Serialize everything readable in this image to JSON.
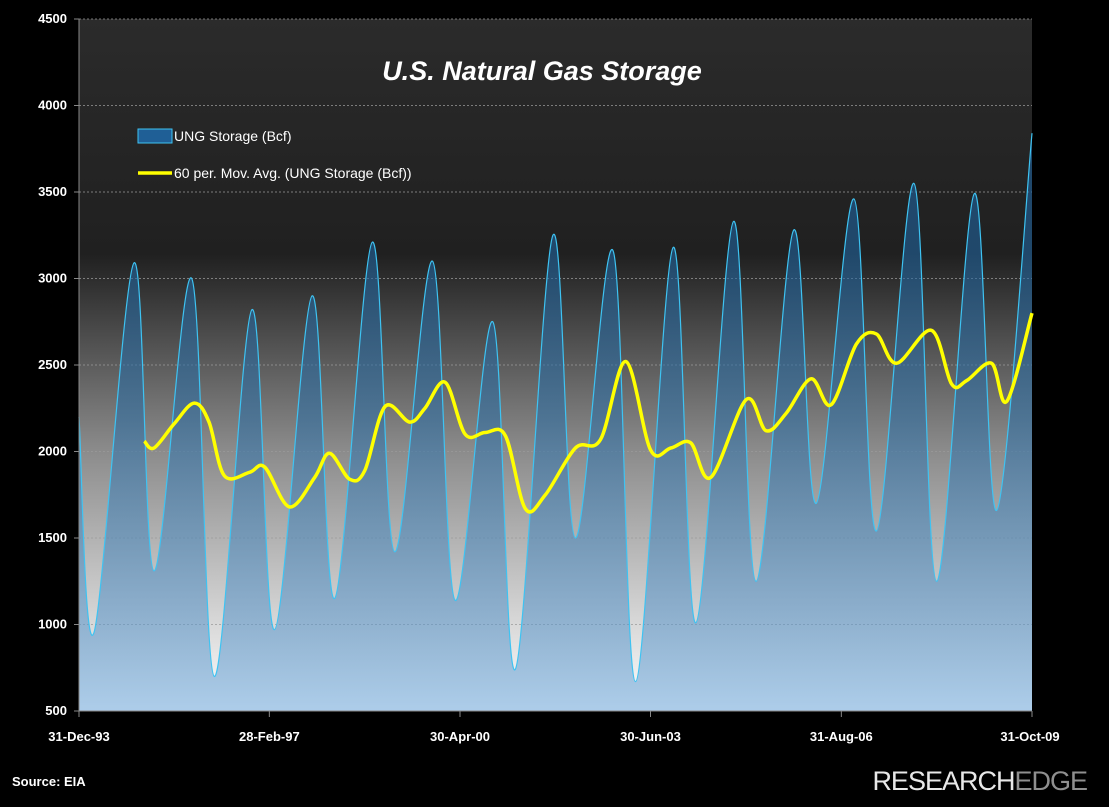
{
  "colors": {
    "background": "#000000",
    "storage_line": "#3ec3f2",
    "moving_avg": "#ffff00",
    "text": "#ffffff"
  },
  "source": "Source: EIA",
  "brand": {
    "part1": "RESEARCH",
    "part2": "EDGE"
  },
  "chart_data": {
    "type": "area",
    "title": "U.S. Natural Gas Storage",
    "xlabel": "",
    "ylabel": "",
    "ylim": [
      500,
      4500
    ],
    "yticks": [
      500,
      1000,
      1500,
      2000,
      2500,
      3000,
      3500,
      4000,
      4500
    ],
    "xlim": [
      "1993-12-31",
      "2009-10-31"
    ],
    "xticks": [
      {
        "date": "1993-12-31",
        "label": "31-Dec-93"
      },
      {
        "date": "1997-02-28",
        "label": "28-Feb-97"
      },
      {
        "date": "2000-04-30",
        "label": "30-Apr-00"
      },
      {
        "date": "2003-06-30",
        "label": "30-Jun-03"
      },
      {
        "date": "2006-08-31",
        "label": "31-Aug-06"
      },
      {
        "date": "2009-10-31",
        "label": "31-Oct-09"
      }
    ],
    "grid": "horizontal",
    "legend_position": "top-left",
    "series": [
      {
        "name": "UNG Storage (Bcf)",
        "type": "area",
        "note_points": "seasonal peaks (Nov) and troughs (Mar); date, Bcf",
        "points": [
          [
            "1993-12-31",
            2200
          ],
          [
            "1994-03-31",
            950
          ],
          [
            "1994-11-30",
            3090
          ],
          [
            "1995-03-31",
            1310
          ],
          [
            "1995-11-15",
            3000
          ],
          [
            "1996-03-31",
            700
          ],
          [
            "1996-11-15",
            2820
          ],
          [
            "1997-03-31",
            970
          ],
          [
            "1997-11-15",
            2900
          ],
          [
            "1998-03-31",
            1150
          ],
          [
            "1998-11-15",
            3210
          ],
          [
            "1999-03-31",
            1420
          ],
          [
            "1999-11-15",
            3100
          ],
          [
            "2000-03-31",
            1140
          ],
          [
            "2000-11-15",
            2750
          ],
          [
            "2001-03-31",
            740
          ],
          [
            "2001-11-15",
            3250
          ],
          [
            "2002-03-31",
            1500
          ],
          [
            "2002-11-15",
            3160
          ],
          [
            "2003-03-31",
            670
          ],
          [
            "2003-11-15",
            3180
          ],
          [
            "2004-03-31",
            1010
          ],
          [
            "2004-11-15",
            3330
          ],
          [
            "2005-03-31",
            1250
          ],
          [
            "2005-11-15",
            3280
          ],
          [
            "2006-03-31",
            1700
          ],
          [
            "2006-11-15",
            3460
          ],
          [
            "2007-03-31",
            1540
          ],
          [
            "2007-11-15",
            3550
          ],
          [
            "2008-03-31",
            1250
          ],
          [
            "2008-11-15",
            3490
          ],
          [
            "2009-03-31",
            1660
          ],
          [
            "2009-10-31",
            3840
          ]
        ]
      },
      {
        "name": "60 per. Mov. Avg. (UNG Storage (Bcf))",
        "type": "line",
        "points": [
          [
            "1995-01-31",
            2060
          ],
          [
            "1995-03-31",
            2020
          ],
          [
            "1995-07-31",
            2160
          ],
          [
            "1995-11-30",
            2280
          ],
          [
            "1996-02-28",
            2170
          ],
          [
            "1996-05-31",
            1860
          ],
          [
            "1996-10-31",
            1880
          ],
          [
            "1997-01-31",
            1910
          ],
          [
            "1997-06-30",
            1680
          ],
          [
            "1997-11-30",
            1850
          ],
          [
            "1998-02-28",
            1990
          ],
          [
            "1998-06-30",
            1840
          ],
          [
            "1998-09-30",
            1890
          ],
          [
            "1999-01-31",
            2260
          ],
          [
            "1999-06-30",
            2170
          ],
          [
            "1999-09-30",
            2250
          ],
          [
            "2000-01-31",
            2400
          ],
          [
            "2000-05-31",
            2100
          ],
          [
            "2000-09-30",
            2110
          ],
          [
            "2001-01-31",
            2090
          ],
          [
            "2001-05-31",
            1670
          ],
          [
            "2001-09-30",
            1750
          ],
          [
            "2002-03-31",
            2020
          ],
          [
            "2002-08-31",
            2070
          ],
          [
            "2003-01-31",
            2520
          ],
          [
            "2003-06-30",
            2010
          ],
          [
            "2003-10-31",
            2020
          ],
          [
            "2004-02-29",
            2050
          ],
          [
            "2004-06-30",
            1850
          ],
          [
            "2005-01-31",
            2300
          ],
          [
            "2005-05-31",
            2120
          ],
          [
            "2005-09-30",
            2220
          ],
          [
            "2006-02-28",
            2420
          ],
          [
            "2006-06-30",
            2270
          ],
          [
            "2006-11-30",
            2620
          ],
          [
            "2007-03-31",
            2680
          ],
          [
            "2007-07-31",
            2510
          ],
          [
            "2008-02-29",
            2700
          ],
          [
            "2008-06-30",
            2390
          ],
          [
            "2008-09-30",
            2410
          ],
          [
            "2009-02-28",
            2510
          ],
          [
            "2009-05-31",
            2290
          ],
          [
            "2009-10-31",
            2800
          ]
        ]
      }
    ]
  }
}
